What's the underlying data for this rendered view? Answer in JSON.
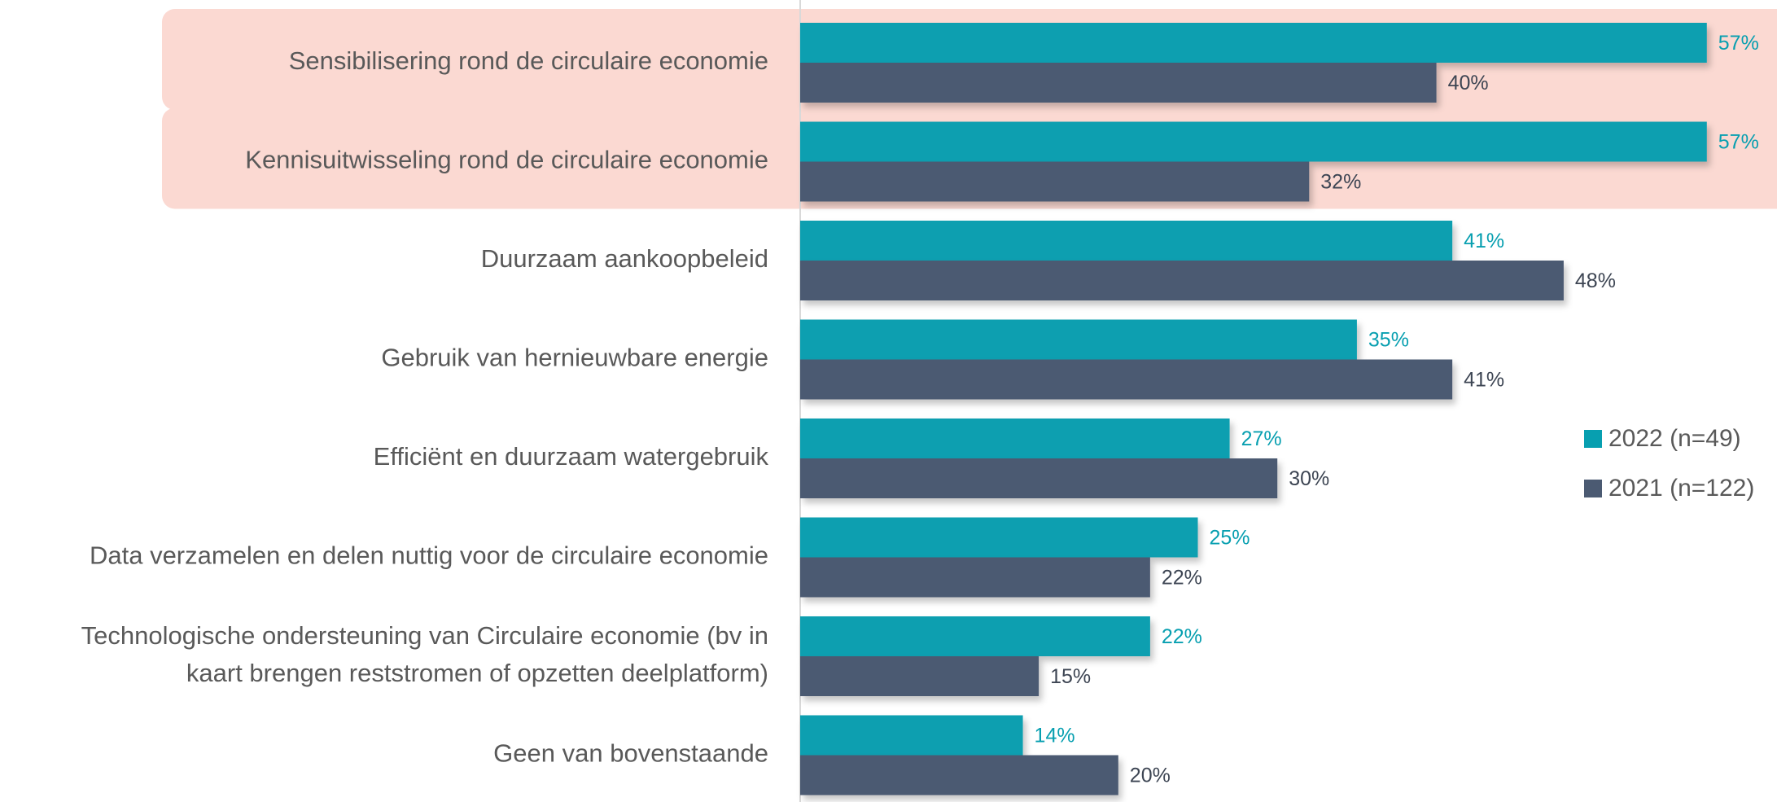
{
  "chart_data": {
    "type": "hbar",
    "categories": [
      "Sensibilisering rond de circulaire economie",
      "Kennisuitwisseling rond de circulaire economie",
      "Duurzaam aankoopbeleid",
      "Gebruik van hernieuwbare energie",
      "Efficiënt en duurzaam watergebruik",
      "Data verzamelen en delen nuttig voor de circulaire economie",
      "Technologische ondersteuning van Circulaire economie (bv in\nkaart brengen reststromen of opzetten deelplatform)",
      "Geen van bovenstaande"
    ],
    "series": [
      {
        "name": "2022 (n=49)",
        "color": "#079fb0",
        "values": [
          57,
          57,
          41,
          35,
          27,
          25,
          22,
          14
        ],
        "value_labels": [
          "57%",
          "57%",
          "41%",
          "35%",
          "27%",
          "25%",
          "22%",
          "14%"
        ]
      },
      {
        "name": "2021 (n=122)",
        "color": "#4b5a72",
        "values": [
          40,
          32,
          48,
          41,
          30,
          22,
          15,
          20
        ],
        "value_labels": [
          "40%",
          "32%",
          "48%",
          "41%",
          "30%",
          "22%",
          "15%",
          "20%"
        ]
      }
    ],
    "highlight": [
      0,
      1
    ],
    "highlight_color": "#fbd9d2",
    "legend": "right"
  }
}
